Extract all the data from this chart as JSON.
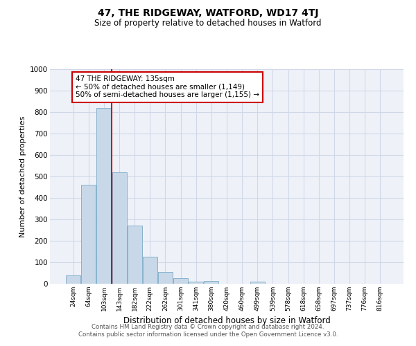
{
  "title": "47, THE RIDGEWAY, WATFORD, WD17 4TJ",
  "subtitle": "Size of property relative to detached houses in Watford",
  "xlabel": "Distribution of detached houses by size in Watford",
  "ylabel": "Number of detached properties",
  "categories": [
    "24sqm",
    "64sqm",
    "103sqm",
    "143sqm",
    "182sqm",
    "222sqm",
    "262sqm",
    "301sqm",
    "341sqm",
    "380sqm",
    "420sqm",
    "460sqm",
    "499sqm",
    "539sqm",
    "578sqm",
    "618sqm",
    "658sqm",
    "697sqm",
    "737sqm",
    "776sqm",
    "816sqm"
  ],
  "values": [
    40,
    460,
    820,
    520,
    270,
    125,
    55,
    25,
    10,
    12,
    0,
    0,
    10,
    0,
    0,
    0,
    0,
    0,
    0,
    0,
    0
  ],
  "bar_color": "#c8d8e8",
  "bar_edge_color": "#7aaac8",
  "grid_color": "#d0d8e8",
  "bg_color": "#eef2f8",
  "vline_color": "#cc0000",
  "annotation_text": "47 THE RIDGEWAY: 135sqm\n← 50% of detached houses are smaller (1,149)\n50% of semi-detached houses are larger (1,155) →",
  "annotation_box_color": "#cc0000",
  "footer_line1": "Contains HM Land Registry data © Crown copyright and database right 2024.",
  "footer_line2": "Contains public sector information licensed under the Open Government Licence v3.0.",
  "ylim": [
    0,
    1000
  ],
  "yticks": [
    0,
    100,
    200,
    300,
    400,
    500,
    600,
    700,
    800,
    900,
    1000
  ]
}
